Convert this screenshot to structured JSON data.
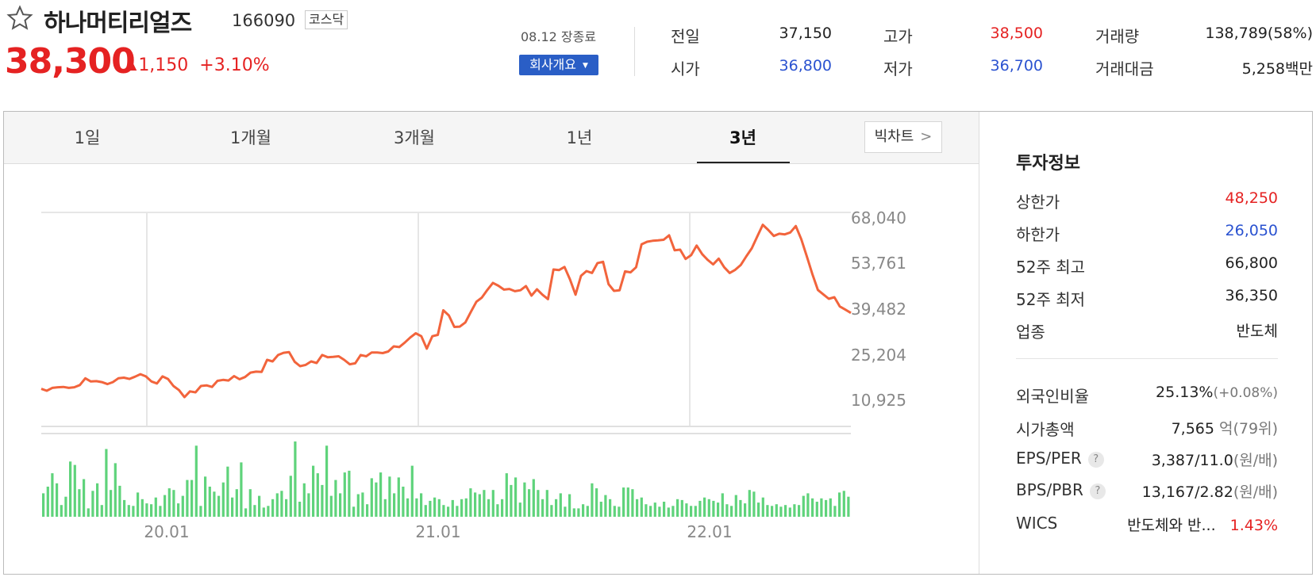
{
  "stock": {
    "name": "하나머티리얼즈",
    "code": "166090",
    "market": "코스닥",
    "price": "38,300",
    "change": "1,150",
    "change_pct": "+3.10%",
    "status": "08.12 장종료",
    "company_button": "회사개요"
  },
  "summary": [
    {
      "label": "전일",
      "value": "37,150",
      "color": "#222222"
    },
    {
      "label": "고가",
      "value": "38,500",
      "color": "#e52222"
    },
    {
      "label": "거래량",
      "value": "138,789(58%)",
      "color": "#222222"
    },
    {
      "label": "시가",
      "value": "36,800",
      "color": "#2a52d0"
    },
    {
      "label": "저가",
      "value": "36,700",
      "color": "#2a52d0"
    },
    {
      "label": "거래대금",
      "value": "5,258",
      "unit": "백만",
      "color": "#222222"
    }
  ],
  "tabs": [
    "1일",
    "1개월",
    "3개월",
    "1년",
    "3년"
  ],
  "active_tab": "3년",
  "big_chart_button": "빅차트",
  "info": {
    "title": "투자정보",
    "upper_limit": {
      "label": "상한가",
      "value": "48,250"
    },
    "lower_limit": {
      "label": "하한가",
      "value": "26,050"
    },
    "high52": {
      "label": "52주 최고",
      "value": "66,800"
    },
    "low52": {
      "label": "52주 최저",
      "value": "36,350"
    },
    "industry": {
      "label": "업종",
      "value": "반도체"
    },
    "foreign": {
      "label": "외국인비율",
      "value": "25.13%",
      "extra": "(+0.08%)"
    },
    "market_cap": {
      "label": "시가총액",
      "value": "7,565",
      "unit": "억",
      "extra": "(79위)"
    },
    "eps_per": {
      "label": "EPS/PER",
      "value": "3,387/11.0",
      "extra": "(원/배)"
    },
    "bps_pbr": {
      "label": "BPS/PBR",
      "value": "13,167/2.82",
      "extra": "(원/배)"
    },
    "wics": {
      "label": "WICS",
      "value": "반도체와 반...",
      "pct": "1.43%"
    }
  },
  "chart_data": {
    "type": "line",
    "y_ticks": [
      "68,040",
      "53,761",
      "39,482",
      "25,204",
      "10,925"
    ],
    "ylim": [
      10925,
      68040
    ],
    "x_ticks": [
      "20.01",
      "21.01",
      "22.01"
    ],
    "series": [
      {
        "values": [
          14500,
          13900,
          14800,
          15000,
          15100,
          14800,
          15000,
          15700,
          17800,
          16800,
          16900,
          16600,
          16000,
          16600,
          17800,
          18000,
          17600,
          18300,
          19100,
          18400,
          16800,
          16200,
          18400,
          17600,
          15400,
          14100,
          11900,
          13700,
          13400,
          15400,
          15600,
          15100,
          17000,
          17300,
          17100,
          18500,
          17500,
          18200,
          19600,
          19900,
          19800,
          23600,
          23100,
          25100,
          25800,
          26000,
          23000,
          21600,
          22000,
          23100,
          22600,
          25100,
          24400,
          24500,
          24700,
          23600,
          22200,
          22500,
          25100,
          24700,
          25900,
          25900,
          25700,
          26200,
          27800,
          27600,
          29000,
          30600,
          31900,
          31000,
          27100,
          31000,
          31400,
          39100,
          37500,
          33900,
          34000,
          35300,
          38600,
          41800,
          43100,
          45500,
          47700,
          46800,
          45600,
          45800,
          45100,
          45400,
          46700,
          43700,
          45700,
          44000,
          42600,
          51900,
          51700,
          52700,
          48800,
          44000,
          49900,
          51400,
          50800,
          53900,
          54300,
          47300,
          45200,
          45400,
          51300,
          51000,
          52600,
          59800,
          60600,
          60900,
          61000,
          61200,
          62600,
          57900,
          58100,
          55200,
          56400,
          59400,
          56700,
          54900,
          53500,
          55300,
          52600,
          50800,
          51800,
          53300,
          56000,
          58500,
          62200,
          65900,
          64300,
          62400,
          63100,
          62900,
          63500,
          65500,
          61300,
          56000,
          50500,
          45500,
          44100,
          42700,
          43200,
          40300,
          39300,
          38300
        ]
      },
      {
        "name": "volume",
        "values": [
          28,
          36,
          52,
          40,
          14,
          24,
          66,
          62,
          33,
          45,
          10,
          31,
          40,
          14,
          81,
          32,
          64,
          37,
          20,
          14,
          13,
          29,
          21,
          16,
          15,
          23,
          13,
          26,
          34,
          32,
          16,
          25,
          44,
          44,
          85,
          13,
          48,
          36,
          30,
          25,
          41,
          60,
          23,
          33,
          65,
          10,
          33,
          14,
          25,
          11,
          13,
          21,
          28,
          31,
          21,
          49,
          90,
          18,
          40,
          28,
          61,
          52,
          38,
          85,
          25,
          44,
          28,
          53,
          55,
          12,
          27,
          29,
          15,
          46,
          41,
          53,
          21,
          48,
          28,
          47,
          36,
          22,
          61,
          22,
          28,
          14,
          19,
          23,
          21,
          14,
          12,
          20,
          13,
          21,
          22,
          34,
          29,
          27,
          32,
          21,
          32,
          15,
          21,
          52,
          38,
          47,
          17,
          41,
          33,
          45,
          32,
          21,
          32,
          14,
          21,
          28,
          12,
          27,
          10,
          10,
          15,
          13,
          40,
          34,
          18,
          26,
          21,
          13,
          12,
          35,
          35,
          33,
          21,
          23,
          15,
          13,
          17,
          12,
          18,
          11,
          13,
          21,
          20,
          16,
          13,
          13,
          19,
          23,
          21,
          19,
          17,
          28,
          15,
          13,
          26,
          20,
          16,
          32,
          30,
          17,
          23,
          14,
          13,
          15,
          12,
          14,
          11,
          15,
          14,
          25,
          28,
          22,
          18,
          22,
          20,
          22,
          13,
          29,
          31,
          24
        ]
      }
    ],
    "colors": {
      "line": "#f2643c",
      "volume": "#5fd37b"
    },
    "grid": true
  }
}
